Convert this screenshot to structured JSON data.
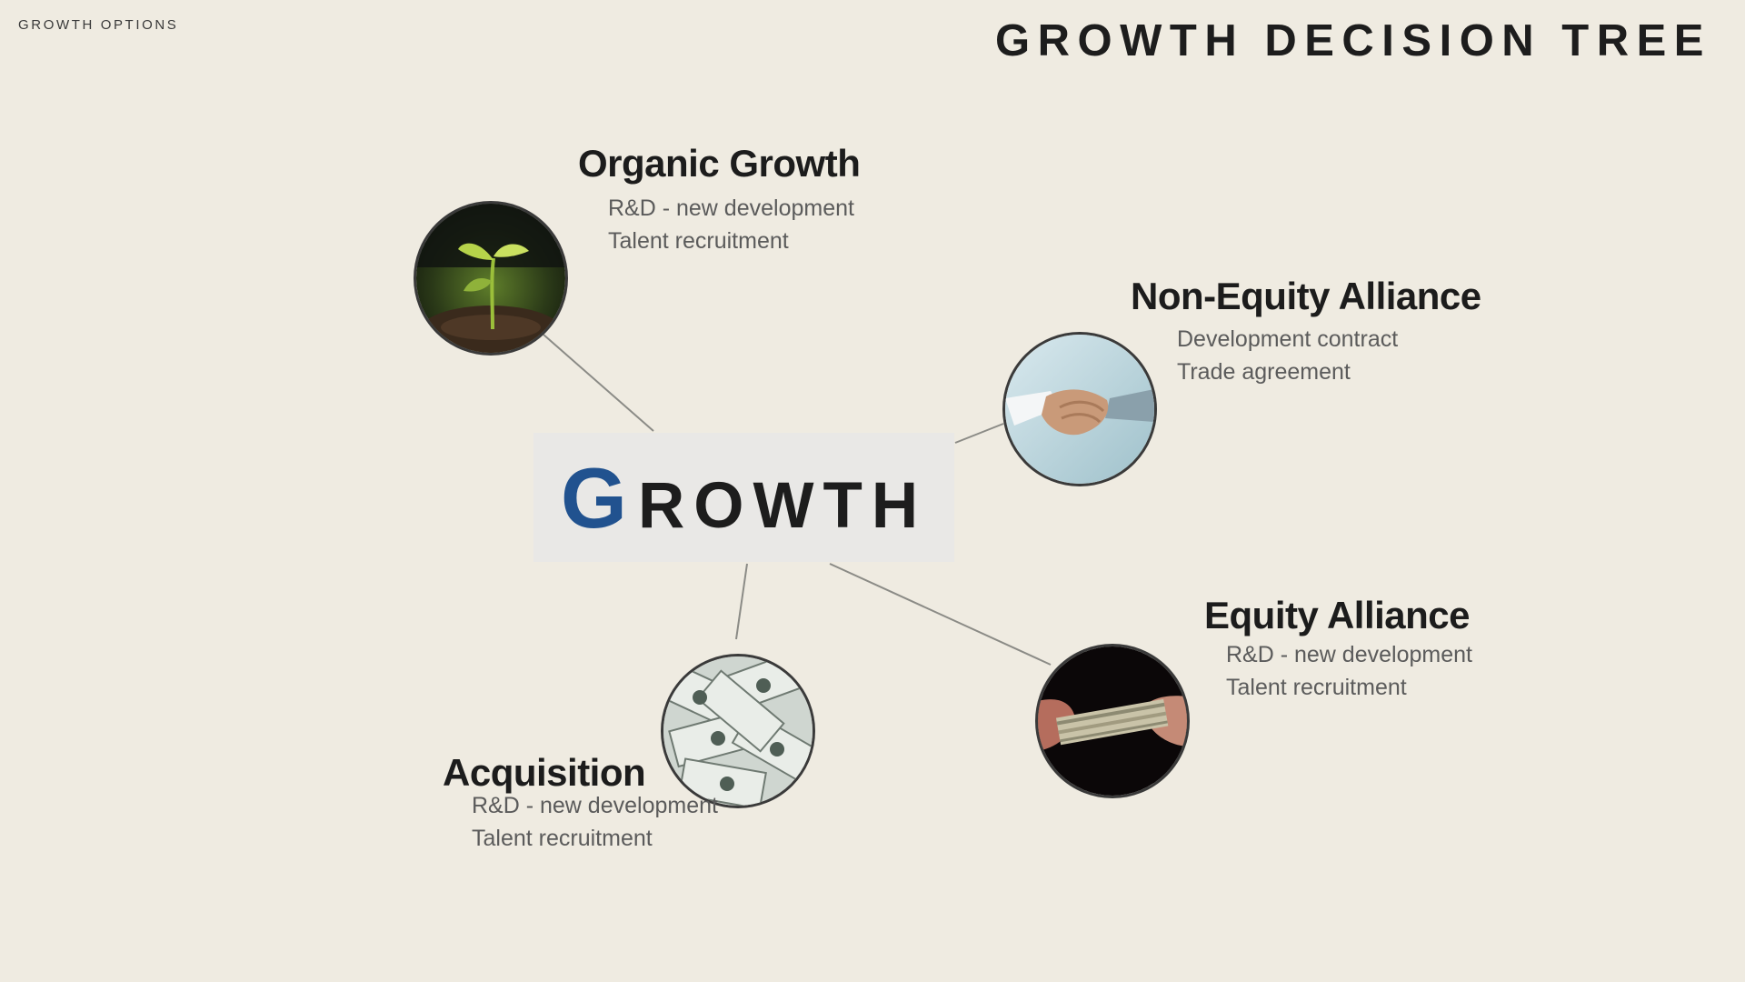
{
  "header": {
    "kicker": "GROWTH OPTIONS",
    "title": "GROWTH DECISION TREE"
  },
  "center": {
    "initial": "G",
    "rest": "ROWTH",
    "accent_color": "#21528f"
  },
  "nodes": [
    {
      "title": "Organic Growth",
      "image": "seedling-icon",
      "lines": [
        "R&D - new development",
        "Talent recruitment"
      ]
    },
    {
      "title": "Non-Equity Alliance",
      "image": "handshake-icon",
      "lines": [
        "Development contract",
        "Trade agreement"
      ]
    },
    {
      "title": "Equity Alliance",
      "image": "money-handoff-icon",
      "lines": [
        "R&D - new development",
        "Talent recruitment"
      ]
    },
    {
      "title": "Acquisition",
      "image": "dollar-bills-icon",
      "lines": [
        "R&D - new development",
        "Talent recruitment"
      ]
    }
  ]
}
